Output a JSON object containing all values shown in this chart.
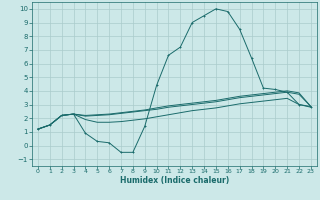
{
  "xlabel": "Humidex (Indice chaleur)",
  "ylabel": "",
  "background_color": "#cce8e8",
  "grid_color": "#aacccc",
  "line_color": "#1a6b6b",
  "xlim": [
    -0.5,
    23.5
  ],
  "ylim": [
    -1.5,
    10.5
  ],
  "xticks": [
    0,
    1,
    2,
    3,
    4,
    5,
    6,
    7,
    8,
    9,
    10,
    11,
    12,
    13,
    14,
    15,
    16,
    17,
    18,
    19,
    20,
    21,
    22,
    23
  ],
  "yticks": [
    -1,
    0,
    1,
    2,
    3,
    4,
    5,
    6,
    7,
    8,
    9,
    10
  ],
  "line1_x": [
    0,
    1,
    2,
    3,
    4,
    5,
    6,
    7,
    8,
    9,
    10,
    11,
    12,
    13,
    14,
    15,
    16,
    17,
    18,
    19,
    20,
    21,
    22,
    23
  ],
  "line1_y": [
    1.2,
    1.5,
    2.2,
    2.3,
    0.9,
    0.3,
    0.2,
    -0.5,
    -0.5,
    1.4,
    4.4,
    6.6,
    7.2,
    9.0,
    9.5,
    10.0,
    9.8,
    8.5,
    6.4,
    4.2,
    4.1,
    3.9,
    3.0,
    2.8
  ],
  "line2_x": [
    0,
    1,
    2,
    3,
    4,
    5,
    6,
    7,
    8,
    9,
    10,
    11,
    12,
    13,
    14,
    15,
    16,
    17,
    18,
    19,
    20,
    21,
    22,
    23
  ],
  "line2_y": [
    1.2,
    1.5,
    2.2,
    2.3,
    2.2,
    2.25,
    2.3,
    2.4,
    2.5,
    2.6,
    2.75,
    2.9,
    3.0,
    3.1,
    3.2,
    3.3,
    3.45,
    3.6,
    3.7,
    3.8,
    3.9,
    4.0,
    3.85,
    2.85
  ],
  "line3_x": [
    0,
    1,
    2,
    3,
    4,
    5,
    6,
    7,
    8,
    9,
    10,
    11,
    12,
    13,
    14,
    15,
    16,
    17,
    18,
    19,
    20,
    21,
    22,
    23
  ],
  "line3_y": [
    1.2,
    1.5,
    2.2,
    2.3,
    2.15,
    2.2,
    2.25,
    2.35,
    2.45,
    2.55,
    2.65,
    2.8,
    2.9,
    3.0,
    3.1,
    3.2,
    3.35,
    3.5,
    3.6,
    3.7,
    3.8,
    3.9,
    3.75,
    2.85
  ],
  "line4_x": [
    0,
    1,
    2,
    3,
    4,
    5,
    6,
    7,
    8,
    9,
    10,
    11,
    12,
    13,
    14,
    15,
    16,
    17,
    18,
    19,
    20,
    21,
    22,
    23
  ],
  "line4_y": [
    1.2,
    1.5,
    2.2,
    2.3,
    1.9,
    1.7,
    1.7,
    1.75,
    1.85,
    1.95,
    2.1,
    2.25,
    2.4,
    2.55,
    2.65,
    2.75,
    2.9,
    3.05,
    3.15,
    3.25,
    3.35,
    3.45,
    3.0,
    2.85
  ]
}
